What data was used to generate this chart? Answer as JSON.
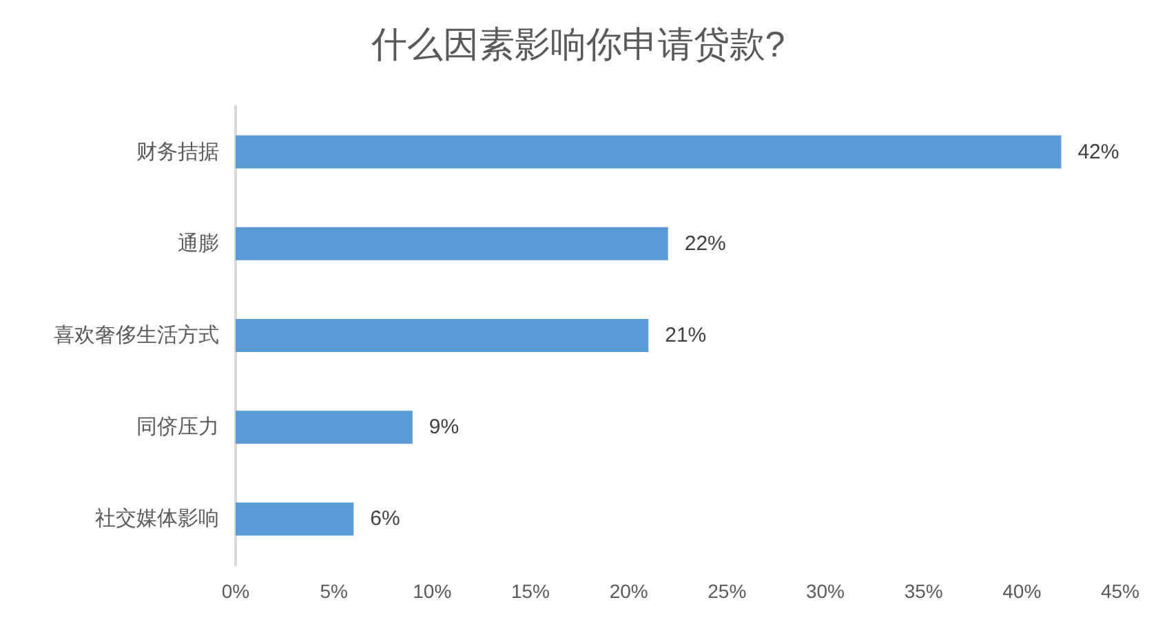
{
  "chart_data": {
    "type": "bar",
    "orientation": "horizontal",
    "title": "什么因素影响你申请贷款?",
    "categories": [
      "财务拮据",
      "通膨",
      "喜欢奢侈生活方式",
      "同侪压力",
      "社交媒体影响"
    ],
    "values": [
      42,
      22,
      21,
      9,
      6
    ],
    "value_labels": [
      "42%",
      "22%",
      "21%",
      "9%",
      "6%"
    ],
    "color": "#5b9bd5",
    "xlim": [
      0,
      45
    ],
    "xticks": [
      {
        "value": 0,
        "label": "0%"
      },
      {
        "value": 5,
        "label": "5%"
      },
      {
        "value": 10,
        "label": "10%"
      },
      {
        "value": 15,
        "label": "15%"
      },
      {
        "value": 20,
        "label": "20%"
      },
      {
        "value": 25,
        "label": "25%"
      },
      {
        "value": 30,
        "label": "30%"
      },
      {
        "value": 35,
        "label": "35%"
      },
      {
        "value": 40,
        "label": "40%"
      },
      {
        "value": 45,
        "label": "45%"
      }
    ],
    "grid": false
  }
}
